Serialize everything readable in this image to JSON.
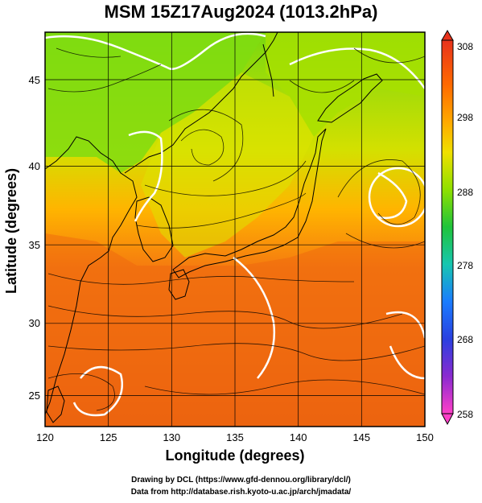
{
  "title": "MSM 15Z17Aug2024 (1013.2hPa)",
  "axes": {
    "xlabel": "Longitude (degrees)",
    "ylabel": "Latitude  (degrees)",
    "xticks": [
      "120",
      "125",
      "130",
      "135",
      "140",
      "145",
      "150"
    ],
    "yticks": [
      "25",
      "30",
      "35",
      "40",
      "45"
    ]
  },
  "colorbar": {
    "ticks": [
      "308",
      "298",
      "288",
      "278",
      "268",
      "258"
    ],
    "colors": [
      "#e0341c",
      "#ff7a00",
      "#ffd200",
      "#8fe000",
      "#1fbf3c",
      "#17c6b0",
      "#1a6cff",
      "#3a28c8",
      "#b02fb8",
      "#ff40c8"
    ]
  },
  "credits": {
    "line1": "Drawing by DCL (https://www.gfd-dennou.org/library/dcl/)",
    "line2": "Data from http://database.rish.kyoto-u.ac.jp/arch/jmadata/"
  },
  "map": {
    "lon_range": [
      120,
      150
    ],
    "lat_range": [
      22.5,
      47.6
    ],
    "colors": {
      "warm": "#ee6a10",
      "mid": "#ff9a20",
      "cool": "#c8e200",
      "cold": "#80dc10",
      "land_outline": "#000000",
      "contour": "#ffffff"
    }
  }
}
